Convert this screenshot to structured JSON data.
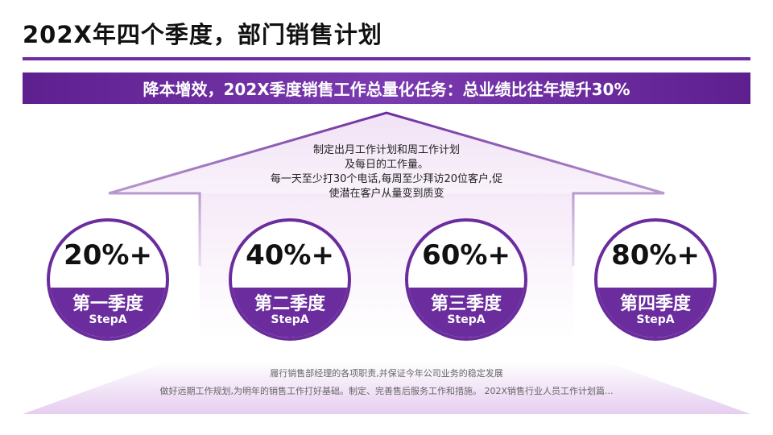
{
  "title": "202X年四个季度，部门销售计划",
  "banner": "降本增效，202X季度销售工作总量化任务：总业绩比往年提升30%",
  "roof_text": [
    "制定出月工作计划和周工作计划",
    "及每日的工作量。",
    "每一天至少打30个电话,每周至少拜访20位客户,促",
    "使潜在客户从量变到质变"
  ],
  "quarters": [
    {
      "percent": "20%+",
      "label": "第一季度",
      "step": "StepA"
    },
    {
      "percent": "40%+",
      "label": "第二季度",
      "step": "StepA"
    },
    {
      "percent": "60%+",
      "label": "第三季度",
      "step": "StepA"
    },
    {
      "percent": "80%+",
      "label": "第四季度",
      "step": "StepA"
    }
  ],
  "bottom_text": [
    "履行销售部经理的各项职责,并保证今年公司业务的稳定发展",
    "做好远期工作规划,为明年的销售工作打好基础。制定、完善售后服务工作和措施。 202X销售行业人员工作计划篇..."
  ],
  "colors": {
    "accent": "#6b2c9e",
    "banner": "#6b2c9e",
    "roof_fill_top": "#f0e3f6",
    "text_dark": "#111111",
    "text_muted": "#666666"
  }
}
